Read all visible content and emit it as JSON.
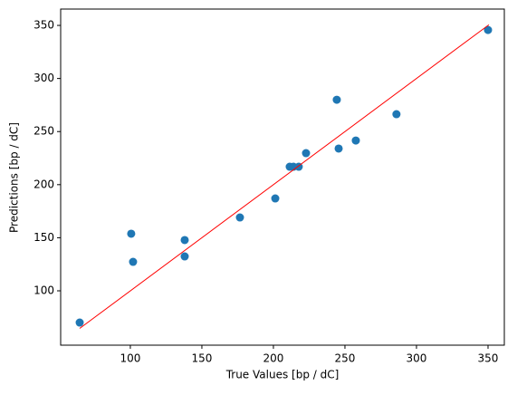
{
  "chart_data": {
    "type": "scatter",
    "xlabel": "True Values [bp / dC]",
    "ylabel": "Predictions [bp / dC]",
    "xlim": [
      51.3,
      361.4
    ],
    "ylim": [
      48.8,
      365.4
    ],
    "xticks": [
      100,
      150,
      200,
      250,
      300,
      350
    ],
    "yticks": [
      100,
      150,
      200,
      250,
      300,
      350
    ],
    "series": [
      {
        "kind": "scatter",
        "color": "#1f77b4",
        "x": [
          64.6,
          100.6,
          101.9,
          138,
          138,
          176.6,
          201.3,
          211.4,
          214,
          217.7,
          222.8,
          244.3,
          245.6,
          257.6,
          286,
          350
        ],
        "values": [
          70.1,
          153.8,
          127.3,
          147.8,
          132.4,
          169.1,
          187,
          216.9,
          216.9,
          216.9,
          229.7,
          280,
          234,
          241.6,
          266.4,
          345.7
        ]
      },
      {
        "kind": "line",
        "color": "#ff0000",
        "x": [
          64.6,
          350.6
        ],
        "values": [
          64.6,
          350.6
        ]
      }
    ]
  }
}
